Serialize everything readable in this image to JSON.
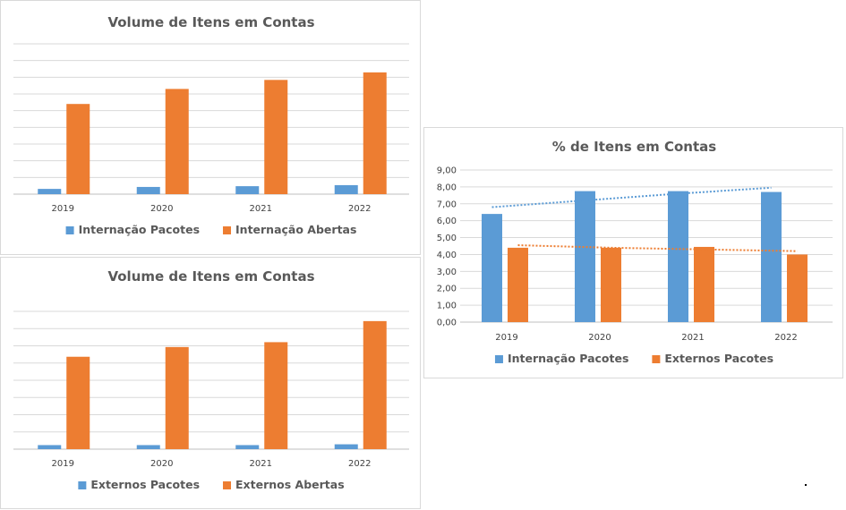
{
  "colors": {
    "blue": "#5b9bd5",
    "orange": "#ed7d31"
  },
  "chart_data": [
    {
      "id": "chart-1",
      "type": "bar",
      "title": "Volume de Itens em Contas",
      "categories": [
        "2019",
        "2020",
        "2021",
        "2022"
      ],
      "series": [
        {
          "name": "Internação Pacotes",
          "color": "#5b9bd5",
          "values": [
            3.5,
            4.8,
            5.3,
            6.0
          ]
        },
        {
          "name": "Internação Abertas",
          "color": "#ed7d31",
          "values": [
            60,
            70,
            76,
            81
          ]
        }
      ],
      "ylim": [
        0,
        100
      ],
      "grid": true,
      "y_tick_labels": false,
      "legend": "bottom"
    },
    {
      "id": "chart-2",
      "type": "bar",
      "title": "Volume de Itens em Contas",
      "categories": [
        "2019",
        "2020",
        "2021",
        "2022"
      ],
      "series": [
        {
          "name": "Externos Pacotes",
          "color": "#5b9bd5",
          "values": [
            2.5,
            2.5,
            2.5,
            3.0
          ]
        },
        {
          "name": "Externos Abertas",
          "color": "#ed7d31",
          "values": [
            57,
            63,
            66,
            79
          ]
        }
      ],
      "ylim": [
        0,
        85
      ],
      "grid": true,
      "y_tick_labels": false,
      "legend": "bottom"
    },
    {
      "id": "chart-3",
      "type": "bar",
      "title": "% de Itens em Contas",
      "categories": [
        "2019",
        "2020",
        "2021",
        "2022"
      ],
      "series": [
        {
          "name": "Internação Pacotes",
          "color": "#5b9bd5",
          "values": [
            6.4,
            7.75,
            7.75,
            7.7
          ],
          "trendline": [
            6.8,
            7.2,
            7.6,
            7.95
          ]
        },
        {
          "name": "Externos Pacotes",
          "color": "#ed7d31",
          "values": [
            4.4,
            4.4,
            4.45,
            4.0
          ],
          "trendline": [
            4.55,
            4.4,
            4.3,
            4.2
          ]
        }
      ],
      "ylim": [
        0,
        9
      ],
      "y_ticks": [
        "0,00",
        "1,00",
        "2,00",
        "3,00",
        "4,00",
        "5,00",
        "6,00",
        "7,00",
        "8,00",
        "9,00"
      ],
      "grid": true,
      "y_tick_labels": true,
      "legend": "bottom"
    }
  ]
}
